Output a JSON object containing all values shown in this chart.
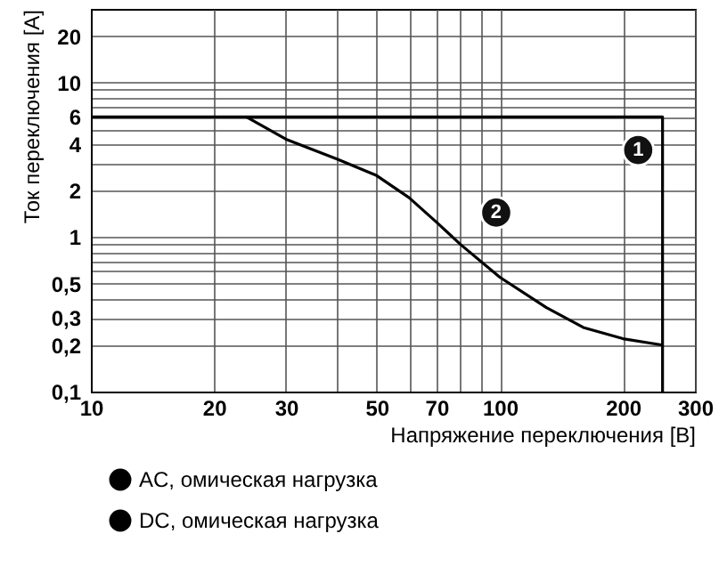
{
  "chart_data": {
    "type": "line",
    "xlabel": "Напряжение переключения [В]",
    "ylabel": "Ток переключения [A]",
    "log": "xy",
    "xlim": [
      10,
      300
    ],
    "ylim": [
      0.1,
      30
    ],
    "xticks": [
      10,
      20,
      30,
      {
        "value": 40,
        "label": null
      },
      50,
      {
        "value": 60,
        "label": null
      },
      70,
      {
        "value": 80,
        "label": null
      },
      {
        "value": 90,
        "label": null
      },
      100,
      200,
      300
    ],
    "yticks": [
      {
        "value": 0.1,
        "label": "0,1"
      },
      {
        "value": 0.2,
        "label": "0,2"
      },
      {
        "value": 0.3,
        "label": "0,3"
      },
      {
        "value": 0.4,
        "label": null
      },
      {
        "value": 0.5,
        "label": "0,5"
      },
      {
        "value": 0.6,
        "label": null
      },
      {
        "value": 0.7,
        "label": null
      },
      {
        "value": 0.8,
        "label": null
      },
      {
        "value": 0.9,
        "label": null
      },
      1,
      2,
      {
        "value": 3,
        "label": null
      },
      4,
      {
        "value": 5,
        "label": null
      },
      6,
      {
        "value": 7,
        "label": null
      },
      {
        "value": 8,
        "label": null
      },
      {
        "value": 9,
        "label": null
      },
      10,
      20
    ],
    "grid": true,
    "legend": "bottom left",
    "marker": "none",
    "line_style": "solid",
    "series": [
      {
        "name": "AC, омическая нагрузка",
        "color": "#000000",
        "x": [
          10,
          250,
          250
        ],
        "values": [
          6,
          6,
          0.1
        ]
      },
      {
        "name": "DC, омическая нагрузка",
        "color": "#000000",
        "x": [
          24,
          30,
          40,
          50,
          60,
          70,
          80,
          100,
          130,
          160,
          200,
          250
        ],
        "values": [
          6,
          4.3,
          3.2,
          2.5,
          1.8,
          1.25,
          0.9,
          0.55,
          0.35,
          0.26,
          0.22,
          0.2
        ]
      }
    ],
    "annotations": [
      {
        "text": "1",
        "x": 218,
        "y": 3.66
      },
      {
        "text": "2",
        "x": 98,
        "y": 1.44
      }
    ]
  }
}
